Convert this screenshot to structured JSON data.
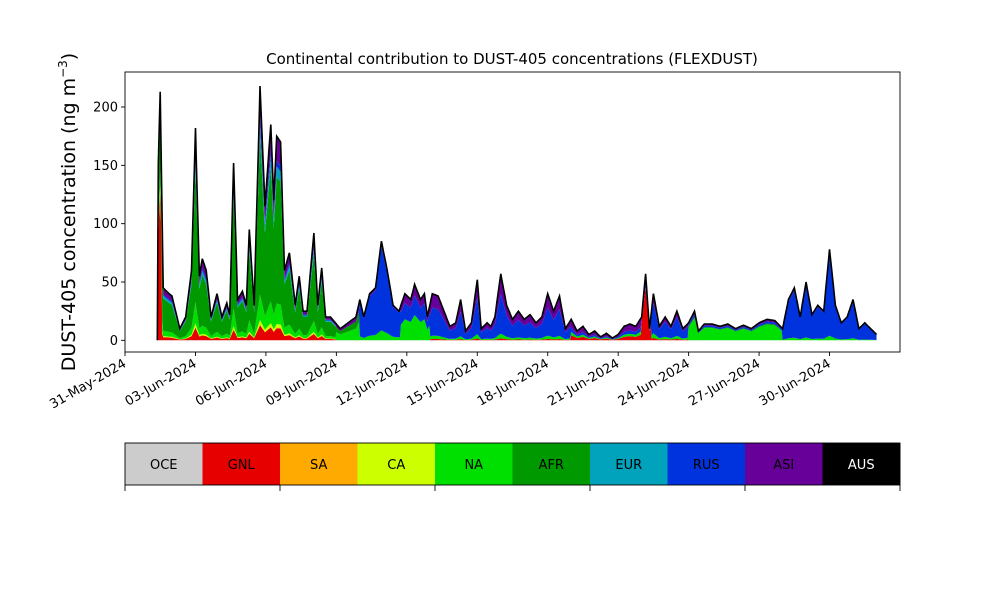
{
  "chart_data": {
    "type": "area",
    "title": "Continental contribution to DUST-405 concentrations (FLEXDUST)",
    "ylabel": "DUST-405 concentration (ng m",
    "ylabel_sup": "−3",
    "ylabel_close": ")",
    "xlabel": "",
    "ylim": [
      -10,
      230
    ],
    "yticks": [
      0,
      50,
      100,
      150,
      200
    ],
    "xlim": [
      "2024-05-31T00",
      "2024-07-03T00"
    ],
    "xticks": [
      "31-May-2024",
      "03-Jun-2024",
      "06-Jun-2024",
      "09-Jun-2024",
      "12-Jun-2024",
      "15-Jun-2024",
      "18-Jun-2024",
      "21-Jun-2024",
      "24-Jun-2024",
      "27-Jun-2024",
      "30-Jun-2024"
    ],
    "grid": false,
    "legend": "colorbar below plot",
    "series": [
      {
        "name": "OCE",
        "color": "#cccccc"
      },
      {
        "name": "GNL",
        "color": "#e60000"
      },
      {
        "name": "SA",
        "color": "#ffaa00"
      },
      {
        "name": "CA",
        "color": "#ccff00"
      },
      {
        "name": "NA",
        "color": "#00e000"
      },
      {
        "name": "AFR",
        "color": "#009900"
      },
      {
        "name": "EUR",
        "color": "#00a3bb"
      },
      {
        "name": "RUS",
        "color": "#0033dd"
      },
      {
        "name": "ASI",
        "color": "#660099"
      },
      {
        "name": "AUS",
        "color": "#000000"
      }
    ],
    "label_colors": {
      "OCE": "#000000",
      "GNL": "#000000",
      "SA": "#000000",
      "CA": "#000000",
      "NA": "#000000",
      "AFR": "#000000",
      "EUR": "#000000",
      "RUS": "#000000",
      "ASI": "#000000",
      "AUS": "#ffffff"
    },
    "total_keypoints": [
      [
        "2024-06-01T09",
        0
      ],
      [
        "2024-06-01T10",
        150
      ],
      [
        "2024-06-01T12",
        213
      ],
      [
        "2024-06-01T15",
        45
      ],
      [
        "2024-06-01T21",
        40
      ],
      [
        "2024-06-02T00",
        38
      ],
      [
        "2024-06-02T08",
        10
      ],
      [
        "2024-06-02T14",
        20
      ],
      [
        "2024-06-02T20",
        60
      ],
      [
        "2024-06-03T00",
        182
      ],
      [
        "2024-06-03T04",
        55
      ],
      [
        "2024-06-03T07",
        70
      ],
      [
        "2024-06-03T11",
        60
      ],
      [
        "2024-06-03T16",
        20
      ],
      [
        "2024-06-03T22",
        40
      ],
      [
        "2024-06-04T03",
        20
      ],
      [
        "2024-06-04T08",
        32
      ],
      [
        "2024-06-04T11",
        22
      ],
      [
        "2024-06-04T15",
        152
      ],
      [
        "2024-06-04T19",
        35
      ],
      [
        "2024-06-05T00",
        42
      ],
      [
        "2024-06-05T04",
        30
      ],
      [
        "2024-06-05T07",
        95
      ],
      [
        "2024-06-05T12",
        30
      ],
      [
        "2024-06-05T18",
        218
      ],
      [
        "2024-06-05T23",
        115
      ],
      [
        "2024-06-06T05",
        185
      ],
      [
        "2024-06-06T08",
        120
      ],
      [
        "2024-06-06T11",
        175
      ],
      [
        "2024-06-06T15",
        170
      ],
      [
        "2024-06-06T19",
        60
      ],
      [
        "2024-06-07T00",
        75
      ],
      [
        "2024-06-07T06",
        30
      ],
      [
        "2024-06-07T10",
        55
      ],
      [
        "2024-06-07T14",
        25
      ],
      [
        "2024-06-07T18",
        25
      ],
      [
        "2024-06-08T01",
        92
      ],
      [
        "2024-06-08T05",
        30
      ],
      [
        "2024-06-08T09",
        62
      ],
      [
        "2024-06-08T13",
        20
      ],
      [
        "2024-06-08T18",
        20
      ],
      [
        "2024-06-09T04",
        10
      ],
      [
        "2024-06-09T12",
        15
      ],
      [
        "2024-06-09T20",
        20
      ],
      [
        "2024-06-10T00",
        35
      ],
      [
        "2024-06-10T04",
        20
      ],
      [
        "2024-06-10T10",
        40
      ],
      [
        "2024-06-10T16",
        45
      ],
      [
        "2024-06-10T22",
        85
      ],
      [
        "2024-06-11T04",
        60
      ],
      [
        "2024-06-11T10",
        30
      ],
      [
        "2024-06-11T16",
        25
      ],
      [
        "2024-06-11T22",
        40
      ],
      [
        "2024-06-12T04",
        35
      ],
      [
        "2024-06-12T08",
        48
      ],
      [
        "2024-06-12T14",
        35
      ],
      [
        "2024-06-12T18",
        40
      ],
      [
        "2024-06-12T21",
        20
      ],
      [
        "2024-06-13T02",
        40
      ],
      [
        "2024-06-13T08",
        38
      ],
      [
        "2024-06-13T14",
        25
      ],
      [
        "2024-06-13T20",
        12
      ],
      [
        "2024-06-14T02",
        15
      ],
      [
        "2024-06-14T07",
        35
      ],
      [
        "2024-06-14T12",
        8
      ],
      [
        "2024-06-14T18",
        15
      ],
      [
        "2024-06-15T00",
        52
      ],
      [
        "2024-06-15T04",
        10
      ],
      [
        "2024-06-15T10",
        15
      ],
      [
        "2024-06-15T14",
        12
      ],
      [
        "2024-06-15T18",
        20
      ],
      [
        "2024-06-16T00",
        57
      ],
      [
        "2024-06-16T06",
        30
      ],
      [
        "2024-06-16T12",
        18
      ],
      [
        "2024-06-16T18",
        25
      ],
      [
        "2024-06-17T00",
        18
      ],
      [
        "2024-06-17T06",
        22
      ],
      [
        "2024-06-17T12",
        15
      ],
      [
        "2024-06-17T18",
        20
      ],
      [
        "2024-06-18T00",
        40
      ],
      [
        "2024-06-18T06",
        25
      ],
      [
        "2024-06-18T12",
        38
      ],
      [
        "2024-06-18T18",
        10
      ],
      [
        "2024-06-19T00",
        18
      ],
      [
        "2024-06-19T06",
        8
      ],
      [
        "2024-06-19T12",
        12
      ],
      [
        "2024-06-19T18",
        5
      ],
      [
        "2024-06-20T00",
        8
      ],
      [
        "2024-06-20T06",
        3
      ],
      [
        "2024-06-20T12",
        6
      ],
      [
        "2024-06-20T18",
        2
      ],
      [
        "2024-06-21T00",
        5
      ],
      [
        "2024-06-21T06",
        12
      ],
      [
        "2024-06-21T12",
        14
      ],
      [
        "2024-06-21T18",
        12
      ],
      [
        "2024-06-22T00",
        20
      ],
      [
        "2024-06-22T04",
        57
      ],
      [
        "2024-06-22T08",
        10
      ],
      [
        "2024-06-22T12",
        40
      ],
      [
        "2024-06-22T18",
        12
      ],
      [
        "2024-06-23T00",
        20
      ],
      [
        "2024-06-23T06",
        12
      ],
      [
        "2024-06-23T12",
        25
      ],
      [
        "2024-06-23T18",
        10
      ],
      [
        "2024-06-24T00",
        15
      ],
      [
        "2024-06-24T06",
        25
      ],
      [
        "2024-06-24T10",
        8
      ],
      [
        "2024-06-24T16",
        14
      ],
      [
        "2024-06-25T00",
        14
      ],
      [
        "2024-06-25T08",
        12
      ],
      [
        "2024-06-25T16",
        14
      ],
      [
        "2024-06-26T00",
        10
      ],
      [
        "2024-06-26T08",
        13
      ],
      [
        "2024-06-26T16",
        10
      ],
      [
        "2024-06-27T00",
        15
      ],
      [
        "2024-06-27T08",
        18
      ],
      [
        "2024-06-27T16",
        17
      ],
      [
        "2024-06-28T00",
        10
      ],
      [
        "2024-06-28T06",
        35
      ],
      [
        "2024-06-28T12",
        45
      ],
      [
        "2024-06-28T18",
        20
      ],
      [
        "2024-06-29T00",
        50
      ],
      [
        "2024-06-29T06",
        22
      ],
      [
        "2024-06-29T12",
        30
      ],
      [
        "2024-06-29T18",
        25
      ],
      [
        "2024-06-30T00",
        78
      ],
      [
        "2024-06-30T06",
        30
      ],
      [
        "2024-06-30T12",
        15
      ],
      [
        "2024-06-30T18",
        20
      ],
      [
        "2024-07-01T00",
        35
      ],
      [
        "2024-07-01T06",
        10
      ],
      [
        "2024-07-01T12",
        15
      ],
      [
        "2024-07-01T18",
        10
      ],
      [
        "2024-07-02T00",
        5
      ]
    ],
    "regimes": [
      {
        "start": "2024-06-01T09",
        "end": "2024-06-01T14",
        "fractions": {
          "GNL": 0.6,
          "CA": 0.03,
          "NA": 0.05,
          "AFR": 0.25,
          "EUR": 0.02,
          "ASI": 0.03,
          "RUS": 0.02
        }
      },
      {
        "start": "2024-06-01T14",
        "end": "2024-06-09T00",
        "fractions": {
          "GNL": 0.06,
          "CA": 0.02,
          "NA": 0.1,
          "AFR": 0.62,
          "EUR": 0.05,
          "RUS": 0.03,
          "ASI": 0.12
        }
      },
      {
        "start": "2024-06-09T00",
        "end": "2024-06-10T00",
        "fractions": {
          "NA": 0.5,
          "AFR": 0.3,
          "ASI": 0.2
        }
      },
      {
        "start": "2024-06-10T00",
        "end": "2024-06-11T18",
        "fractions": {
          "NA": 0.1,
          "RUS": 0.85,
          "ASI": 0.05
        }
      },
      {
        "start": "2024-06-11T18",
        "end": "2024-06-13T00",
        "fractions": {
          "NA": 0.45,
          "RUS": 0.35,
          "ASI": 0.2
        }
      },
      {
        "start": "2024-06-13T00",
        "end": "2024-06-19T00",
        "fractions": {
          "GNL": 0.03,
          "NA": 0.07,
          "RUS": 0.6,
          "ASI": 0.3
        }
      },
      {
        "start": "2024-06-19T00",
        "end": "2024-06-22T00",
        "fractions": {
          "GNL": 0.25,
          "NA": 0.15,
          "RUS": 0.2,
          "ASI": 0.4
        }
      },
      {
        "start": "2024-06-22T00",
        "end": "2024-06-22T10",
        "fractions": {
          "GNL": 0.8,
          "RUS": 0.1,
          "ASI": 0.1
        }
      },
      {
        "start": "2024-06-22T10",
        "end": "2024-06-24T00",
        "fractions": {
          "GNL": 0.05,
          "NA": 0.1,
          "RUS": 0.65,
          "ASI": 0.2
        }
      },
      {
        "start": "2024-06-24T00",
        "end": "2024-06-28T00",
        "fractions": {
          "NA": 0.75,
          "AFR": 0.05,
          "RUS": 0.1,
          "ASI": 0.1
        }
      },
      {
        "start": "2024-06-28T00",
        "end": "2024-07-02T06",
        "fractions": {
          "NA": 0.05,
          "RUS": 0.9,
          "ASI": 0.05
        }
      }
    ]
  }
}
